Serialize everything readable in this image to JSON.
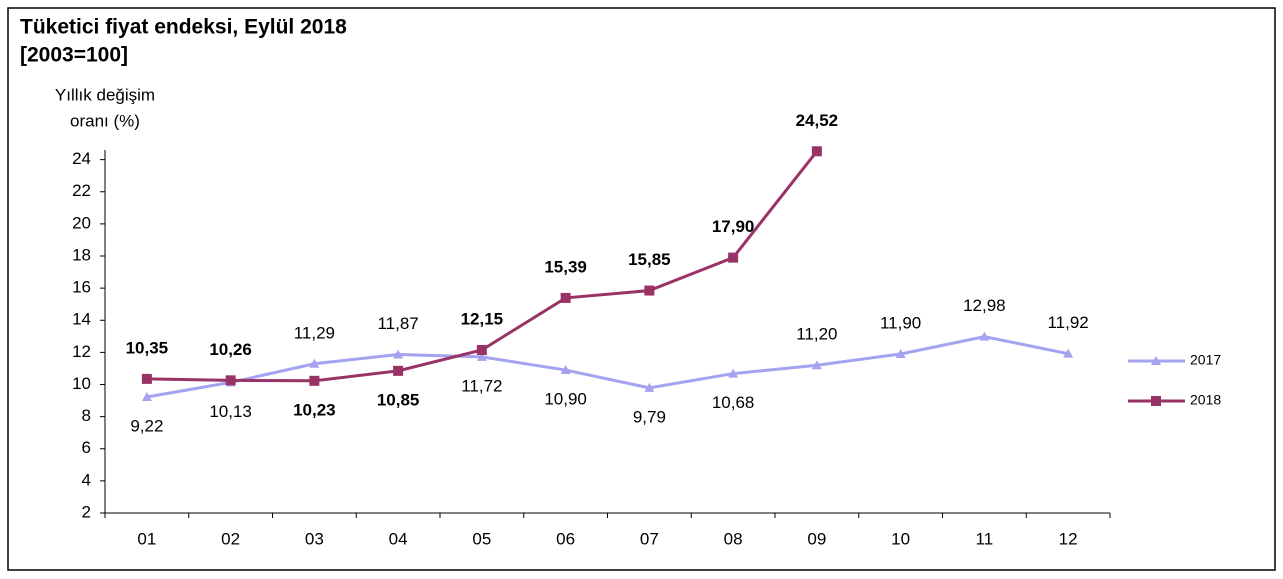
{
  "chart_data": {
    "type": "line",
    "title": "Tüketici fiyat endeksi, Eylül 2018",
    "subtitle": "[2003=100]",
    "y_label": [
      "Yıllık değişim",
      "oranı (%)"
    ],
    "categories": [
      "01",
      "02",
      "03",
      "04",
      "05",
      "06",
      "07",
      "08",
      "09",
      "10",
      "11",
      "12"
    ],
    "series": [
      {
        "name": "2017",
        "color": "#a3a3f0",
        "marker": "triangle",
        "values": [
          9.22,
          10.13,
          11.29,
          11.87,
          11.72,
          10.9,
          9.79,
          10.68,
          11.2,
          11.9,
          12.98,
          11.92
        ],
        "value_labels": [
          "9,22",
          "10,13",
          "11,29",
          "11,87",
          "11,72",
          "10,90",
          "9,79",
          "10,68",
          "11,20",
          "11,90",
          "12,98",
          "11,92"
        ]
      },
      {
        "name": "2018",
        "color": "#993366",
        "marker": "square",
        "bold_labels": true,
        "values": [
          10.35,
          10.26,
          10.23,
          10.85,
          12.15,
          15.39,
          15.85,
          17.9,
          24.52,
          null,
          null,
          null
        ],
        "value_labels": [
          "10,35",
          "10,26",
          "10,23",
          "10,85",
          "12,15",
          "15,39",
          "15,85",
          "17,90",
          "24,52",
          null,
          null,
          null
        ]
      }
    ],
    "ylim": [
      2,
      24.6
    ],
    "yticks": [
      2,
      4,
      6,
      8,
      10,
      12,
      14,
      16,
      18,
      20,
      22,
      24
    ],
    "grid": false,
    "legend": "right"
  }
}
